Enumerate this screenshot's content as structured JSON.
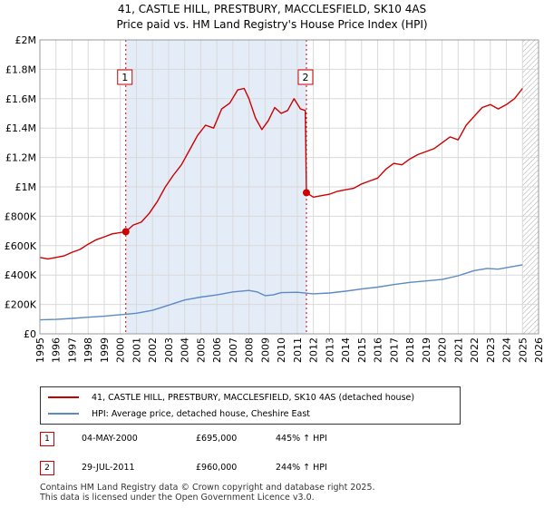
{
  "title_line1": "41, CASTLE HILL, PRESTBURY, MACCLESFIELD, SK10 4AS",
  "title_line2": "Price paid vs. HM Land Registry's House Price Index (HPI)",
  "colors": {
    "red": "#cc0000",
    "blue": "#5b8ac7",
    "shade": "#dde7f6",
    "grid": "#d9d9d9"
  },
  "legend": {
    "red_label": "41, CASTLE HILL, PRESTBURY, MACCLESFIELD, SK10 4AS (detached house)",
    "blue_label": "HPI: Average price, detached house, Cheshire East"
  },
  "sales": [
    {
      "num": "1",
      "date": "04-MAY-2000",
      "price": "£695,000",
      "hpi": "445% ↑ HPI"
    },
    {
      "num": "2",
      "date": "29-JUL-2011",
      "price": "£960,000",
      "hpi": "244% ↑ HPI"
    }
  ],
  "footer_line1": "Contains HM Land Registry data © Crown copyright and database right 2025.",
  "footer_line2": "This data is licensed under the Open Government Licence v3.0.",
  "chart_data": {
    "type": "line",
    "title": "41, CASTLE HILL, PRESTBURY, MACCLESFIELD, SK10 4AS",
    "subtitle": "Price paid vs. HM Land Registry's House Price Index (HPI)",
    "xlabel": "",
    "ylabel": "",
    "xlim": [
      1995,
      2026
    ],
    "ylim": [
      0,
      2000000
    ],
    "y_ticks": [
      0,
      200000,
      400000,
      600000,
      800000,
      1000000,
      1200000,
      1400000,
      1600000,
      1800000,
      2000000
    ],
    "y_tick_labels": [
      "£0",
      "£200K",
      "£400K",
      "£600K",
      "£800K",
      "£1M",
      "£1.2M",
      "£1.4M",
      "£1.6M",
      "£1.8M",
      "£2M"
    ],
    "x_ticks": [
      1995,
      1996,
      1997,
      1998,
      1999,
      2000,
      2001,
      2002,
      2003,
      2004,
      2005,
      2006,
      2007,
      2008,
      2009,
      2010,
      2011,
      2012,
      2013,
      2014,
      2015,
      2016,
      2017,
      2018,
      2019,
      2020,
      2021,
      2022,
      2023,
      2024,
      2025,
      2026
    ],
    "shaded_range": [
      2000.34,
      2011.57
    ],
    "future_hatch_from": 2025.0,
    "series": [
      {
        "name": "41, CASTLE HILL, PRESTBURY, MACCLESFIELD, SK10 4AS (detached house)",
        "color": "#cc0000",
        "x": [
          1995,
          1995.5,
          1996,
          1996.5,
          1997,
          1997.5,
          1998,
          1998.5,
          1999,
          1999.5,
          2000.34,
          2000.8,
          2001.3,
          2001.8,
          2002.3,
          2002.8,
          2003.3,
          2003.8,
          2004.3,
          2004.8,
          2005.3,
          2005.8,
          2006.3,
          2006.8,
          2007.3,
          2007.7,
          2008.0,
          2008.4,
          2008.8,
          2009.2,
          2009.6,
          2010.0,
          2010.4,
          2010.8,
          2011.2,
          2011.5,
          2011.57,
          2012.0,
          2012.5,
          2013.0,
          2013.5,
          2014.0,
          2014.5,
          2015.0,
          2015.5,
          2016.0,
          2016.5,
          2017.0,
          2017.5,
          2018.0,
          2018.5,
          2019.0,
          2019.5,
          2020.0,
          2020.5,
          2021.0,
          2021.5,
          2022.0,
          2022.5,
          2023.0,
          2023.5,
          2024.0,
          2024.5,
          2025.0
        ],
        "values": [
          520000,
          510000,
          520000,
          530000,
          555000,
          575000,
          610000,
          640000,
          660000,
          680000,
          695000,
          740000,
          760000,
          820000,
          900000,
          1000000,
          1080000,
          1150000,
          1250000,
          1350000,
          1420000,
          1400000,
          1530000,
          1570000,
          1660000,
          1670000,
          1600000,
          1470000,
          1390000,
          1450000,
          1540000,
          1500000,
          1520000,
          1600000,
          1530000,
          1520000,
          960000,
          930000,
          940000,
          950000,
          970000,
          980000,
          990000,
          1020000,
          1040000,
          1060000,
          1120000,
          1160000,
          1150000,
          1190000,
          1220000,
          1240000,
          1260000,
          1300000,
          1340000,
          1320000,
          1420000,
          1480000,
          1540000,
          1560000,
          1530000,
          1560000,
          1600000,
          1670000
        ]
      },
      {
        "name": "HPI: Average price, detached house, Cheshire East",
        "color": "#5b8ac7",
        "x": [
          1995,
          1996,
          1997,
          1998,
          1999,
          2000,
          2001,
          2002,
          2003,
          2004,
          2005,
          2006,
          2007,
          2008,
          2008.5,
          2009,
          2009.5,
          2010,
          2011,
          2012,
          2013,
          2014,
          2015,
          2016,
          2017,
          2018,
          2019,
          2020,
          2021,
          2022,
          2022.8,
          2023.5,
          2024,
          2025
        ],
        "values": [
          95000,
          98000,
          105000,
          113000,
          120000,
          130000,
          140000,
          160000,
          195000,
          230000,
          250000,
          265000,
          285000,
          295000,
          285000,
          260000,
          265000,
          280000,
          283000,
          272000,
          278000,
          290000,
          305000,
          318000,
          335000,
          350000,
          360000,
          370000,
          395000,
          430000,
          445000,
          440000,
          450000,
          470000
        ]
      }
    ],
    "sale_points": [
      {
        "label": "1",
        "x": 2000.34,
        "value": 695000
      },
      {
        "label": "2",
        "x": 2011.57,
        "value": 960000
      }
    ]
  }
}
